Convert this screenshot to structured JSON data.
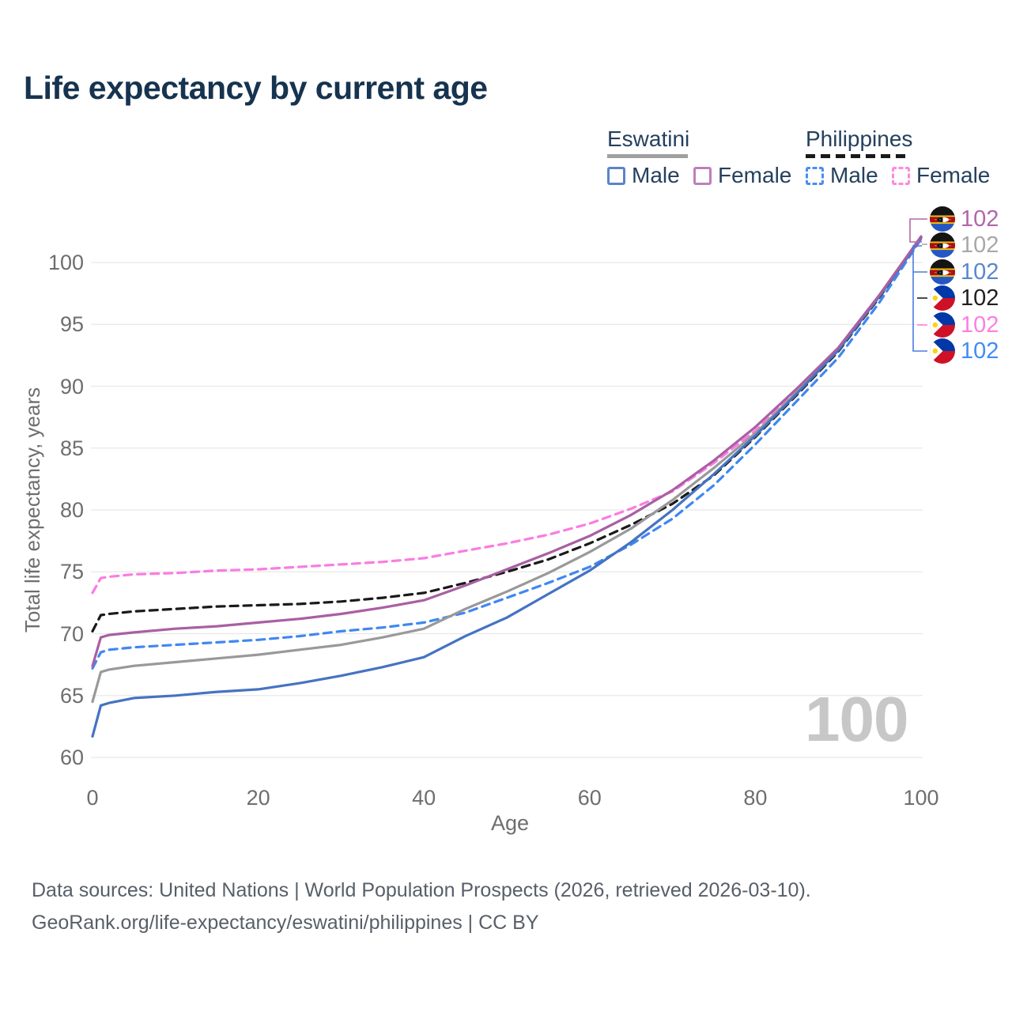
{
  "title": "Life expectancy by current age",
  "legend": {
    "groups": [
      {
        "name": "Eswatini",
        "line_style": "solid",
        "underline_color": "#a0a0a0",
        "items": [
          {
            "label": "Male",
            "swatch_color": "#5b84c6",
            "swatch_style": "solid"
          },
          {
            "label": "Female",
            "swatch_color": "#bd7fbb",
            "swatch_style": "solid"
          }
        ]
      },
      {
        "name": "Philippines",
        "line_style": "dashed",
        "underline_color": "#1a1a1a",
        "items": [
          {
            "label": "Male",
            "swatch_color": "#4a8df2",
            "swatch_style": "dashed"
          },
          {
            "label": "Female",
            "swatch_color": "#fb8ae2",
            "swatch_style": "dashed"
          }
        ]
      }
    ]
  },
  "watermark": "100",
  "right_labels": [
    {
      "series": "Eswatini Female",
      "flag": "eswatini",
      "value": "102",
      "color": "#b167a8"
    },
    {
      "series": "Eswatini Both sexes",
      "flag": "eswatini",
      "value": "102",
      "color": "#a8a8a8"
    },
    {
      "series": "Eswatini Male",
      "flag": "eswatini",
      "value": "102",
      "color": "#5b86ce"
    },
    {
      "series": "Philippines Both sexes",
      "flag": "philippines",
      "value": "102",
      "color": "#1f1f1f"
    },
    {
      "series": "Philippines Female",
      "flag": "philippines",
      "value": "102",
      "color": "#fb7fe1"
    },
    {
      "series": "Philippines Male",
      "flag": "philippines",
      "value": "102",
      "color": "#418df2"
    }
  ],
  "footer": {
    "line1": "Data sources: United Nations | World Population Prospects (2026, retrieved 2026-03-10).",
    "line2": "GeoRank.org/life-expectancy/eswatini/philippines | CC BY"
  },
  "chart_data": {
    "type": "line",
    "title": "Life expectancy by current age",
    "xlabel": "Age",
    "ylabel": "Total life expectancy, years",
    "xlim": [
      0,
      100
    ],
    "ylim": [
      60,
      103
    ],
    "x_ticks": [
      0,
      20,
      40,
      60,
      80,
      100
    ],
    "y_ticks": [
      60,
      65,
      70,
      75,
      80,
      85,
      90,
      95,
      100
    ],
    "grid": "horizontal",
    "legend_position": "top-right",
    "x": [
      0,
      1,
      2,
      5,
      10,
      15,
      20,
      25,
      30,
      35,
      40,
      45,
      50,
      55,
      60,
      65,
      70,
      75,
      80,
      85,
      90,
      95,
      100
    ],
    "series": [
      {
        "name": "Eswatini Male",
        "country": "Eswatini",
        "sex": "Male",
        "color": "#4573c2",
        "dash": false,
        "values": [
          61.7,
          64.2,
          64.4,
          64.8,
          65.0,
          65.3,
          65.5,
          66.0,
          66.6,
          67.3,
          68.1,
          69.8,
          71.3,
          73.2,
          75.1,
          77.4,
          80.0,
          82.9,
          86.0,
          89.4,
          92.9,
          97.3,
          102
        ]
      },
      {
        "name": "Eswatini Female",
        "country": "Eswatini",
        "sex": "Female",
        "color": "#a95fa2",
        "dash": false,
        "values": [
          67.4,
          69.7,
          69.9,
          70.1,
          70.4,
          70.6,
          70.9,
          71.2,
          71.6,
          72.1,
          72.7,
          73.9,
          75.2,
          76.5,
          77.9,
          79.6,
          81.6,
          84.0,
          86.7,
          89.8,
          93.1,
          97.4,
          102.1
        ]
      },
      {
        "name": "Eswatini Both sexes",
        "country": "Eswatini",
        "sex": "Both",
        "color": "#999999",
        "dash": false,
        "values": [
          64.5,
          66.9,
          67.1,
          67.4,
          67.7,
          68.0,
          68.3,
          68.7,
          69.1,
          69.7,
          70.4,
          72.0,
          73.4,
          74.9,
          76.6,
          78.5,
          80.8,
          83.4,
          86.2,
          89.5,
          92.9,
          97.3,
          102
        ]
      },
      {
        "name": "Philippines Male",
        "country": "Philippines",
        "sex": "Male",
        "color": "#3f87f2",
        "dash": true,
        "values": [
          67.2,
          68.5,
          68.7,
          68.9,
          69.1,
          69.3,
          69.5,
          69.8,
          70.2,
          70.5,
          70.9,
          71.7,
          72.9,
          74.1,
          75.4,
          77.2,
          79.3,
          82.0,
          85.3,
          88.8,
          92.3,
          96.8,
          101.9
        ]
      },
      {
        "name": "Philippines Female",
        "country": "Philippines",
        "sex": "Female",
        "color": "#fb7ce0",
        "dash": true,
        "values": [
          73.3,
          74.5,
          74.6,
          74.8,
          74.9,
          75.1,
          75.2,
          75.4,
          75.6,
          75.8,
          76.1,
          76.7,
          77.3,
          78.0,
          78.9,
          80.1,
          81.5,
          83.8,
          86.4,
          89.6,
          93.0,
          97.3,
          102
        ]
      },
      {
        "name": "Philippines Both sexes",
        "country": "Philippines",
        "sex": "Both",
        "color": "#1a1a1a",
        "dash": true,
        "values": [
          70.2,
          71.5,
          71.6,
          71.8,
          72.0,
          72.2,
          72.3,
          72.4,
          72.6,
          72.9,
          73.3,
          74.1,
          75.0,
          76.0,
          77.3,
          78.8,
          80.5,
          82.8,
          85.9,
          89.3,
          92.8,
          97.2,
          102
        ]
      }
    ],
    "end_value_label": "102"
  }
}
